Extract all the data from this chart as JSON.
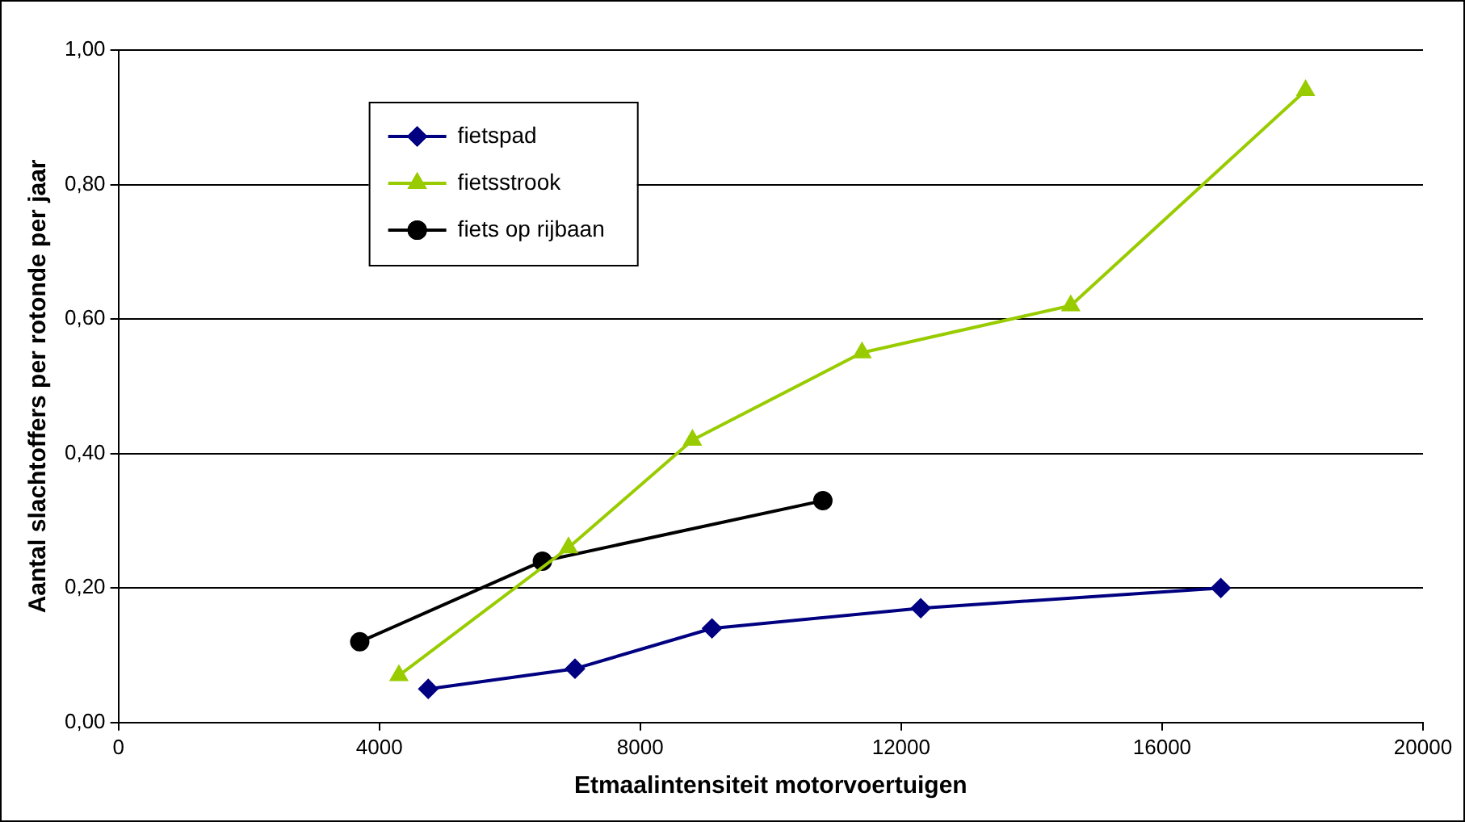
{
  "chart_data": {
    "type": "line",
    "xlabel": "Etmaalintensiteit motorvoertuigen",
    "ylabel": "Aantal slachtoffers per rotonde per jaar",
    "xlim": [
      0,
      20000
    ],
    "xticks": [
      0,
      4000,
      8000,
      12000,
      16000,
      20000
    ],
    "ylim": [
      0,
      1
    ],
    "yticks": [
      {
        "value": 0,
        "label": "0,00"
      },
      {
        "value": 0.2,
        "label": "0,20"
      },
      {
        "value": 0.4,
        "label": "0,40"
      },
      {
        "value": 0.6,
        "label": "0,60"
      },
      {
        "value": 0.8,
        "label": "0,80"
      },
      {
        "value": 1,
        "label": "1,00"
      }
    ],
    "grid": "y",
    "legend": "top left",
    "series": [
      {
        "name": "fietspad",
        "color": "#000080",
        "marker": "diamond",
        "x": [
          4750,
          7000,
          9100,
          12300,
          16900
        ],
        "values": [
          0.05,
          0.08,
          0.14,
          0.17,
          0.2
        ]
      },
      {
        "name": "fietsstrook",
        "color": "#99cc00",
        "marker": "triangle",
        "x": [
          4300,
          6900,
          8800,
          11400,
          14600,
          18200
        ],
        "values": [
          0.07,
          0.26,
          0.42,
          0.55,
          0.62,
          0.94
        ]
      },
      {
        "name": "fiets op rijbaan",
        "color": "#000000",
        "marker": "circle",
        "x": [
          3700,
          6500,
          10800
        ],
        "values": [
          0.12,
          0.24,
          0.33
        ]
      }
    ]
  }
}
